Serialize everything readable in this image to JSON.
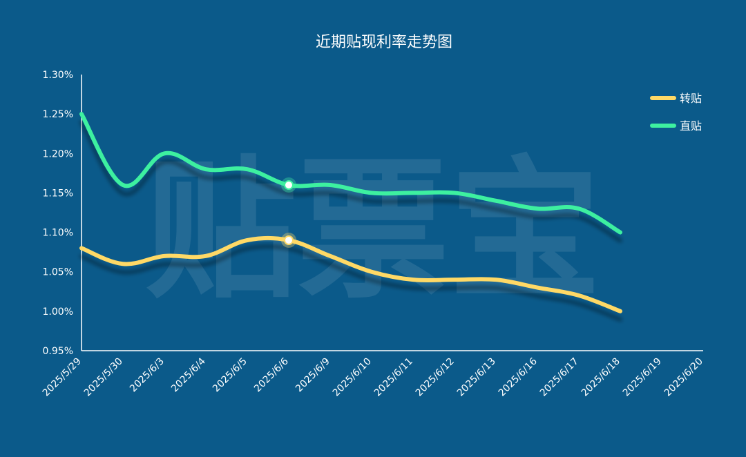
{
  "chart_data": {
    "type": "line",
    "title": "近期贴现利率走势图",
    "watermark": "贴票宝",
    "categories": [
      "2025/5/29",
      "2025/5/30",
      "2025/6/3",
      "2025/6/4",
      "2025/6/5",
      "2025/6/6",
      "2025/6/9",
      "2025/6/10",
      "2025/6/11",
      "2025/6/12",
      "2025/6/13",
      "2025/6/16",
      "2025/6/17",
      "2025/6/18",
      "2025/6/19",
      "2025/6/20"
    ],
    "ylim": [
      0.95,
      1.3
    ],
    "yticks": [
      "1.30%",
      "1.25%",
      "1.20%",
      "1.15%",
      "1.10%",
      "1.05%",
      "1.00%",
      "0.95%"
    ],
    "ytick_values": [
      1.3,
      1.25,
      1.2,
      1.15,
      1.1,
      1.05,
      1.0,
      0.95
    ],
    "legend_position": "top-right",
    "grid": false,
    "highlight_index": 5,
    "series": [
      {
        "name": "转贴",
        "color": "#ffd966",
        "values": [
          1.08,
          1.06,
          1.07,
          1.07,
          1.09,
          1.09,
          1.07,
          1.05,
          1.04,
          1.04,
          1.04,
          1.03,
          1.02,
          1.0,
          null,
          null
        ]
      },
      {
        "name": "直贴",
        "color": "#3ef0a0",
        "values": [
          1.25,
          1.16,
          1.2,
          1.18,
          1.18,
          1.16,
          1.16,
          1.15,
          1.15,
          1.15,
          1.14,
          1.13,
          1.13,
          1.1,
          null,
          null
        ]
      }
    ]
  },
  "colors": {
    "background": "#0b5a8a",
    "axis": "#ffffff",
    "text": "#ffffff"
  }
}
